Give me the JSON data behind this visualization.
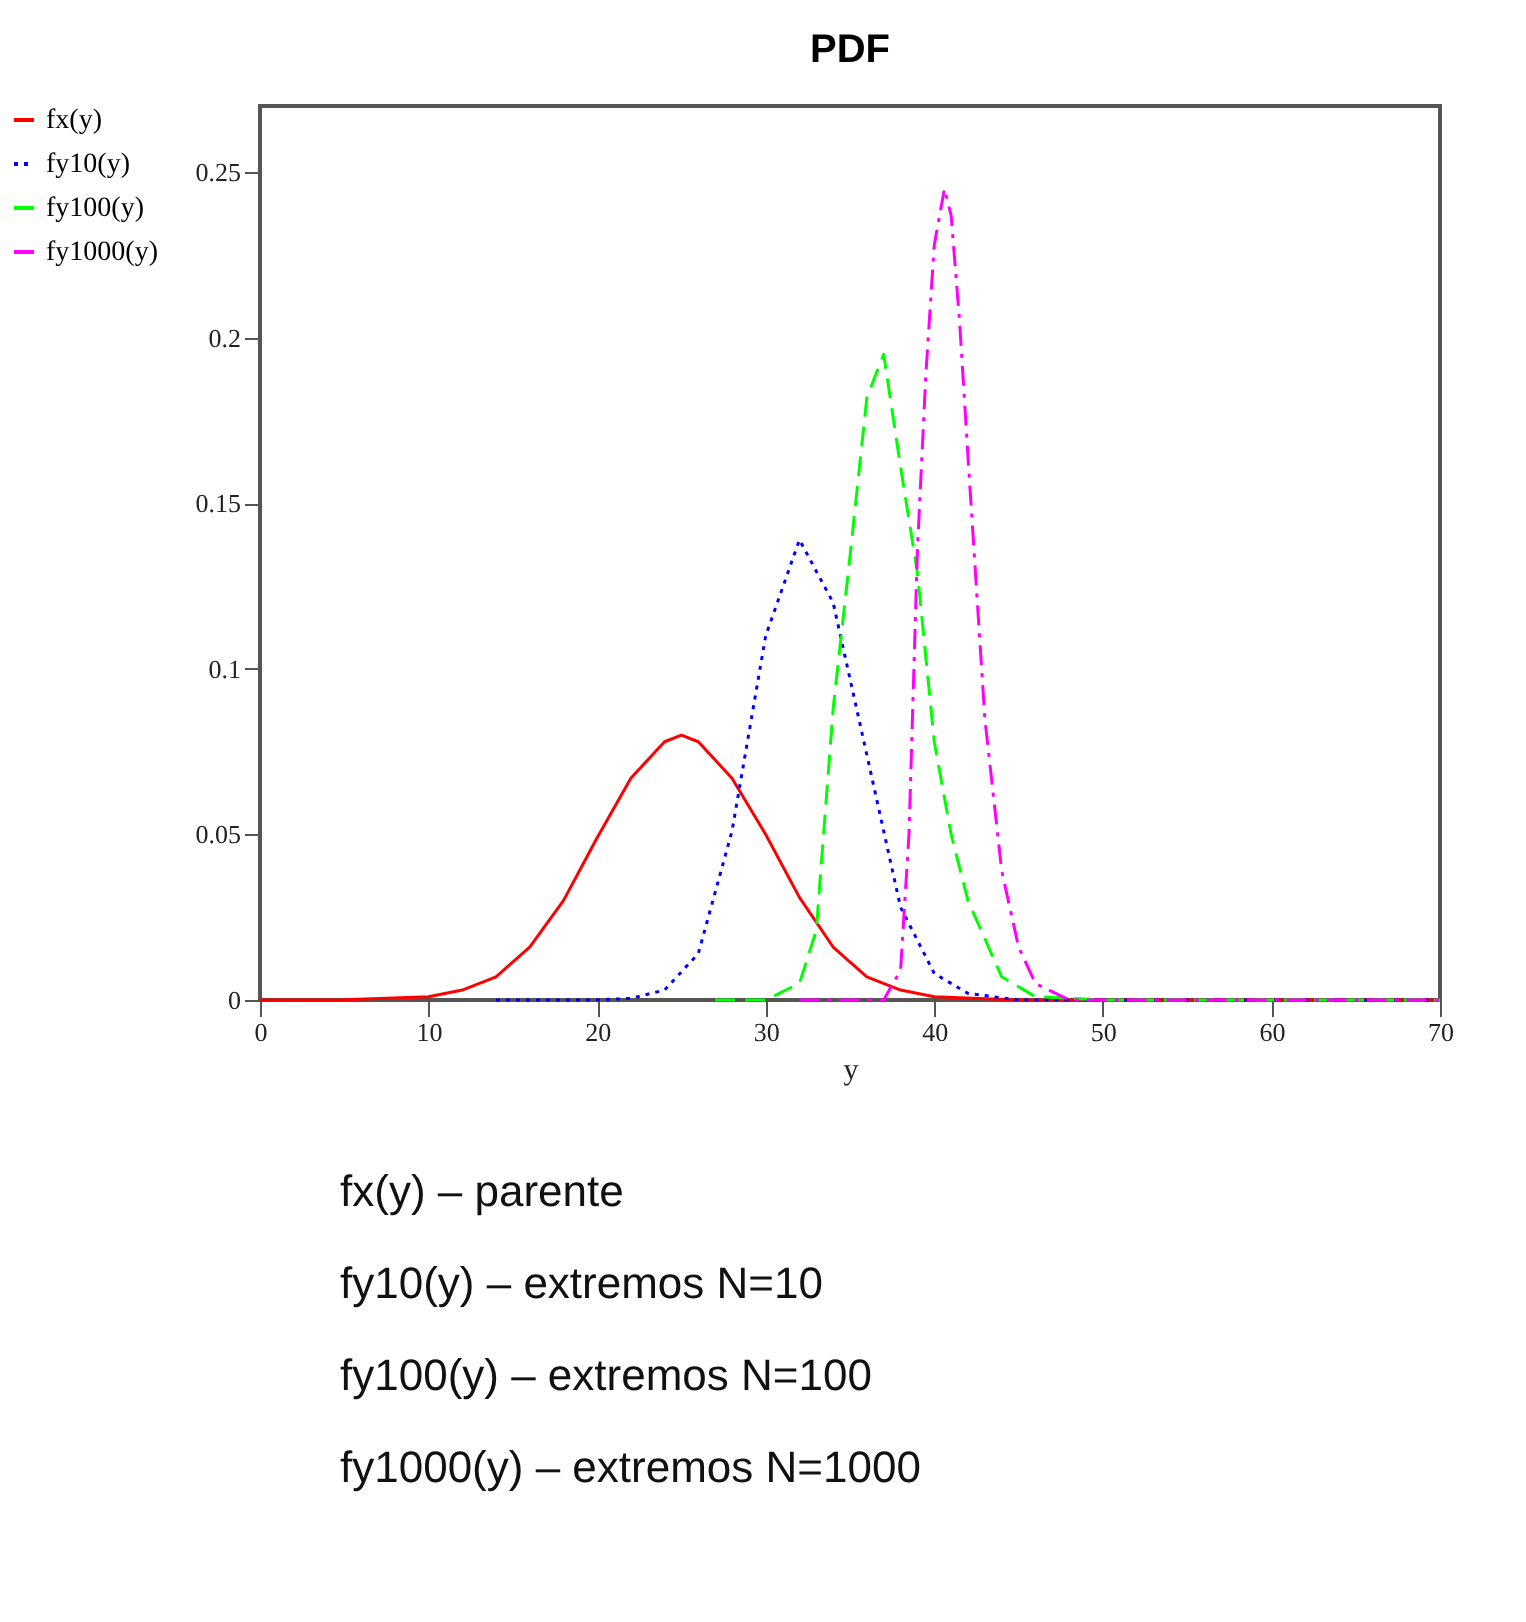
{
  "chart_data": {
    "type": "line",
    "title": "PDF",
    "xlabel": "y",
    "legend": "left",
    "xlim": [
      0,
      70
    ],
    "ylim": [
      0,
      0.27
    ],
    "xticks": [
      0,
      10,
      20,
      30,
      40,
      50,
      60,
      70
    ],
    "yticks": [
      0,
      0.05,
      0.1,
      0.15,
      0.2,
      0.25
    ],
    "series": [
      {
        "name": "fx(y)",
        "color": "#ff0000",
        "line_style": "solid",
        "x": [
          0,
          5,
          10,
          12,
          14,
          16,
          18,
          20,
          22,
          24,
          25,
          26,
          28,
          30,
          32,
          34,
          36,
          38,
          40,
          45,
          70
        ],
        "values": [
          0,
          0.0001,
          0.001,
          0.003,
          0.007,
          0.016,
          0.03,
          0.049,
          0.067,
          0.078,
          0.08,
          0.078,
          0.067,
          0.05,
          0.031,
          0.016,
          0.007,
          0.003,
          0.001,
          0,
          0
        ]
      },
      {
        "name": "fy10(y)",
        "color": "#0000ff",
        "line_style": "dotted",
        "x": [
          14,
          20,
          22,
          24,
          26,
          28,
          30,
          32,
          34,
          36,
          38,
          40,
          42,
          45,
          50,
          70
        ],
        "values": [
          0,
          0,
          0.0005,
          0.003,
          0.014,
          0.051,
          0.11,
          0.139,
          0.12,
          0.074,
          0.028,
          0.008,
          0.002,
          0,
          0,
          0
        ]
      },
      {
        "name": "fy100(y)",
        "color": "#00ff00",
        "line_style": "dashed",
        "x": [
          27,
          30,
          32,
          33,
          34,
          35,
          36,
          37,
          38,
          39,
          40,
          41,
          42,
          44,
          46,
          50,
          70
        ],
        "values": [
          0,
          0,
          0.005,
          0.021,
          0.088,
          0.134,
          0.182,
          0.195,
          0.161,
          0.129,
          0.078,
          0.05,
          0.03,
          0.007,
          0.001,
          0,
          0
        ]
      },
      {
        "name": "fy1000(y)",
        "color": "#ff00ff",
        "line_style": "dashdot",
        "x": [
          32,
          37,
          38,
          38.5,
          39,
          39.5,
          40,
          40.6,
          41,
          41.5,
          42,
          43,
          44,
          45,
          46,
          48,
          70
        ],
        "values": [
          0,
          0,
          0.009,
          0.05,
          0.136,
          0.189,
          0.228,
          0.245,
          0.237,
          0.205,
          0.164,
          0.085,
          0.039,
          0.016,
          0.005,
          0,
          0
        ]
      }
    ],
    "annotations": [
      "fx(y) – parente",
      "fy10(y) – extremos N=10",
      "fy100(y) – extremos N=100",
      "fy1000(y) – extremos N=1000"
    ]
  }
}
